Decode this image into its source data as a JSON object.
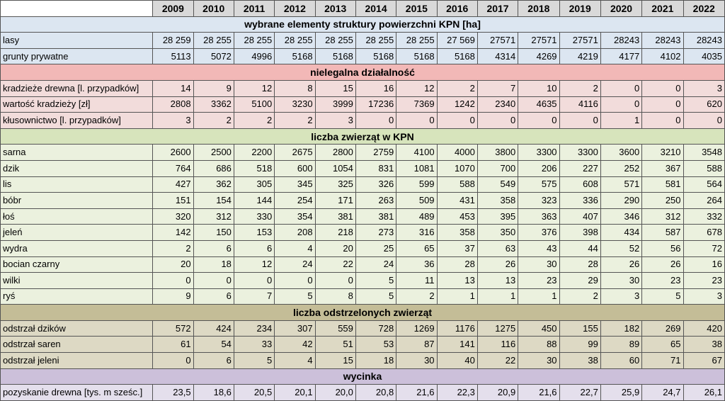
{
  "years": [
    "2009",
    "2010",
    "2011",
    "2012",
    "2013",
    "2014",
    "2015",
    "2016",
    "2017",
    "2018",
    "2019",
    "2020",
    "2021",
    "2022"
  ],
  "sections": [
    {
      "title": "wybrane elementy struktury powierzchni KPN [ha]",
      "color": "blue",
      "rows": [
        {
          "label": "lasy",
          "values": [
            "28 259",
            "28 255",
            "28 255",
            "28 255",
            "28 255",
            "28 255",
            "28 255",
            "27 569",
            "27571",
            "27571",
            "27571",
            "28243",
            "28243",
            "28243"
          ]
        },
        {
          "label": "grunty prywatne",
          "values": [
            "5113",
            "5072",
            "4996",
            "5168",
            "5168",
            "5168",
            "5168",
            "5168",
            "4314",
            "4269",
            "4219",
            "4177",
            "4102",
            "4035"
          ]
        }
      ]
    },
    {
      "title": "nielegalna działalność",
      "color": "red",
      "rows": [
        {
          "label": "kradzieże drewna [l. przypadków]",
          "values": [
            "14",
            "9",
            "12",
            "8",
            "15",
            "16",
            "12",
            "2",
            "7",
            "10",
            "2",
            "0",
            "0",
            "3"
          ]
        },
        {
          "label": "wartość kradzieży [zł]",
          "values": [
            "2808",
            "3362",
            "5100",
            "3230",
            "3999",
            "17236",
            "7369",
            "1242",
            "2340",
            "4635",
            "4116",
            "0",
            "0",
            "620"
          ]
        },
        {
          "label": "kłusownictwo  [l. przypadków]",
          "values": [
            "3",
            "2",
            "2",
            "2",
            "3",
            "0",
            "0",
            "0",
            "0",
            "0",
            "0",
            "1",
            "0",
            "0"
          ]
        }
      ]
    },
    {
      "title": "liczba zwierząt w KPN",
      "color": "green",
      "rows": [
        {
          "label": "sarna",
          "values": [
            "2600",
            "2500",
            "2200",
            "2675",
            "2800",
            "2759",
            "4100",
            "4000",
            "3800",
            "3300",
            "3300",
            "3600",
            "3210",
            "3548"
          ]
        },
        {
          "label": "dzik",
          "values": [
            "764",
            "686",
            "518",
            "600",
            "1054",
            "831",
            "1081",
            "1070",
            "700",
            "206",
            "227",
            "252",
            "367",
            "588"
          ]
        },
        {
          "label": "lis",
          "values": [
            "427",
            "362",
            "305",
            "345",
            "325",
            "326",
            "599",
            "588",
            "549",
            "575",
            "608",
            "571",
            "581",
            "564"
          ]
        },
        {
          "label": "bóbr",
          "values": [
            "151",
            "154",
            "144",
            "254",
            "171",
            "263",
            "509",
            "431",
            "358",
            "323",
            "336",
            "290",
            "250",
            "264"
          ]
        },
        {
          "label": "łoś",
          "values": [
            "320",
            "312",
            "330",
            "354",
            "381",
            "381",
            "489",
            "453",
            "395",
            "363",
            "407",
            "346",
            "312",
            "332"
          ]
        },
        {
          "label": "jeleń",
          "values": [
            "142",
            "150",
            "153",
            "208",
            "218",
            "273",
            "316",
            "358",
            "350",
            "376",
            "398",
            "434",
            "587",
            "678"
          ]
        },
        {
          "label": "wydra",
          "values": [
            "2",
            "6",
            "6",
            "4",
            "20",
            "25",
            "65",
            "37",
            "63",
            "43",
            "44",
            "52",
            "56",
            "72"
          ]
        },
        {
          "label": "bocian czarny",
          "values": [
            "20",
            "18",
            "12",
            "24",
            "22",
            "24",
            "36",
            "28",
            "26",
            "30",
            "28",
            "26",
            "26",
            "16"
          ]
        },
        {
          "label": "wilki",
          "values": [
            "0",
            "0",
            "0",
            "0",
            "0",
            "5",
            "11",
            "13",
            "13",
            "23",
            "29",
            "30",
            "23",
            "23"
          ]
        },
        {
          "label": "ryś",
          "values": [
            "9",
            "6",
            "7",
            "5",
            "8",
            "5",
            "2",
            "1",
            "1",
            "1",
            "2",
            "3",
            "5",
            "3"
          ]
        }
      ]
    },
    {
      "title": "liczba odstrzelonych zwierząt",
      "color": "tan",
      "rows": [
        {
          "label": "odstrzał dzików",
          "values": [
            "572",
            "424",
            "234",
            "307",
            "559",
            "728",
            "1269",
            "1176",
            "1275",
            "450",
            "155",
            "182",
            "269",
            "420"
          ]
        },
        {
          "label": "odstrzał saren",
          "values": [
            "61",
            "54",
            "33",
            "42",
            "51",
            "53",
            "87",
            "141",
            "116",
            "88",
            "99",
            "89",
            "65",
            "38"
          ]
        },
        {
          "label": "odstrzał jeleni",
          "values": [
            "0",
            "6",
            "5",
            "4",
            "15",
            "18",
            "30",
            "40",
            "22",
            "30",
            "38",
            "60",
            "71",
            "67"
          ]
        }
      ]
    },
    {
      "title": "wycinka",
      "color": "purple",
      "rows": [
        {
          "label": "pozyskanie drewna [tys. m sześc.]",
          "values": [
            "23,5",
            "18,6",
            "20,5",
            "20,1",
            "20,0",
            "20,8",
            "21,6",
            "22,3",
            "20,9",
            "21,6",
            "22,7",
            "25,9",
            "24,7",
            "26,1"
          ]
        }
      ]
    }
  ]
}
